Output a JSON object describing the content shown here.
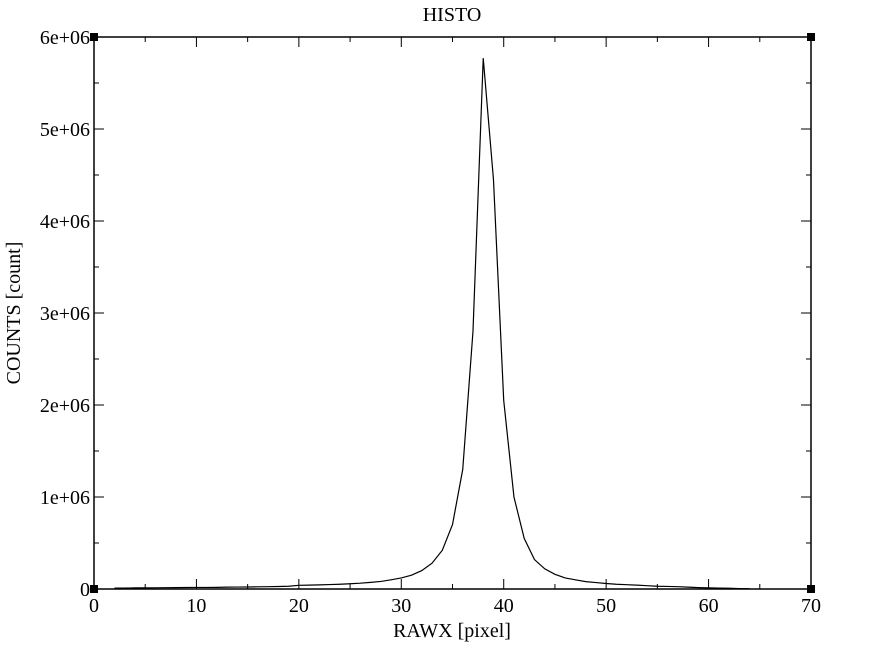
{
  "chart_data": {
    "type": "line",
    "title": "HISTO",
    "x_label": "RAWX [pixel]",
    "y_label": "COUNTS [count]",
    "x": [
      2,
      3,
      4,
      5,
      6,
      7,
      8,
      9,
      10,
      11,
      12,
      13,
      14,
      15,
      16,
      17,
      18,
      19,
      20,
      21,
      22,
      23,
      24,
      25,
      26,
      27,
      28,
      29,
      30,
      31,
      32,
      33,
      34,
      35,
      36,
      37,
      38,
      39,
      40,
      41,
      42,
      43,
      44,
      45,
      46,
      47,
      48,
      49,
      50,
      51,
      52,
      53,
      54,
      55,
      56,
      57,
      58,
      59,
      60,
      61,
      62,
      63,
      64
    ],
    "values": [
      10000,
      10000,
      12000,
      12000,
      13000,
      14000,
      15000,
      16000,
      17000,
      17000,
      18000,
      20000,
      21000,
      22000,
      24000,
      25000,
      27000,
      30000,
      40000,
      42000,
      45000,
      48000,
      52000,
      57000,
      63000,
      72000,
      82000,
      100000,
      120000,
      150000,
      200000,
      280000,
      420000,
      700000,
      1300000,
      2800000,
      5770000,
      4450000,
      2050000,
      1000000,
      550000,
      320000,
      220000,
      160000,
      120000,
      100000,
      80000,
      70000,
      60000,
      52000,
      47000,
      42000,
      36000,
      30000,
      28000,
      25000,
      20000,
      15000,
      12000,
      10000,
      8000,
      5000,
      3000
    ],
    "color": "#000000",
    "xlim": [
      0,
      70
    ],
    "xticks": [
      0,
      10,
      20,
      30,
      40,
      50,
      60,
      70
    ],
    "ylim": [
      0,
      6000000
    ],
    "yticks": [
      0,
      {
        "value": 1000000,
        "label": "1e+06"
      },
      {
        "value": 2000000,
        "label": "2e+06"
      },
      {
        "value": 3000000,
        "label": "3e+06"
      },
      {
        "value": 4000000,
        "label": "4e+06"
      },
      {
        "value": 5000000,
        "label": "5e+06"
      },
      {
        "value": 6000000,
        "label": "6e+06"
      }
    ]
  }
}
